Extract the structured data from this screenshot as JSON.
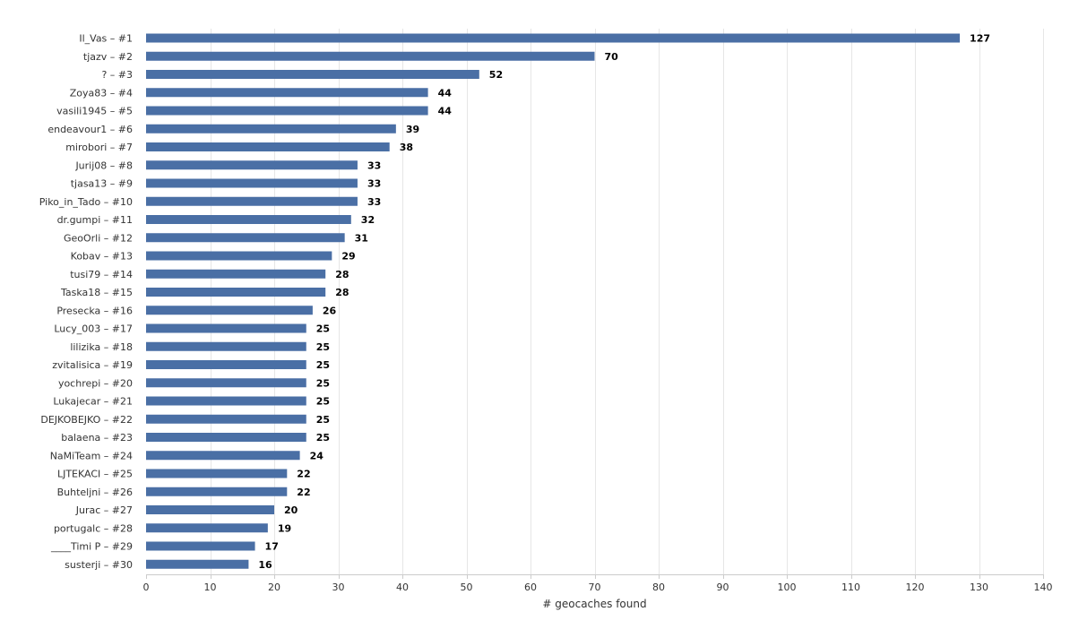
{
  "chart_data": {
    "type": "bar",
    "orientation": "horizontal",
    "categories": [
      "Il_Vas – #1",
      "tjazv – #2",
      "? – #3",
      "Zoya83 – #4",
      "vasili1945 – #5",
      "endeavour1 – #6",
      "mirobori – #7",
      "Jurij08 – #8",
      "tjasa13 – #9",
      "Piko_in_Tado – #10",
      "dr.gumpi – #11",
      "GeoOrli – #12",
      "Kobav – #13",
      "tusi79 – #14",
      "Taska18 – #15",
      "Presecka – #16",
      "Lucy_003 – #17",
      "lilizika – #18",
      "zvitalisica – #19",
      "yochrepi – #20",
      "Lukajecar – #21",
      "DEJKOBEJKO – #22",
      "balaena – #23",
      "NaMiTeam – #24",
      "LJTEKACI – #25",
      "Buhteljni – #26",
      "Jurac – #27",
      "portugalc – #28",
      "____Timi P – #29",
      "susterji – #30"
    ],
    "values": [
      127,
      70,
      52,
      44,
      44,
      39,
      38,
      33,
      33,
      33,
      32,
      31,
      29,
      28,
      28,
      26,
      25,
      25,
      25,
      25,
      25,
      25,
      25,
      24,
      22,
      22,
      20,
      19,
      17,
      16
    ],
    "xlabel": "# geocaches found",
    "ylabel": "",
    "xlim": [
      0,
      140
    ],
    "xticks": [
      0,
      10,
      20,
      30,
      40,
      50,
      60,
      70,
      80,
      90,
      100,
      110,
      120,
      130,
      140
    ],
    "grid": true,
    "data_labels": true,
    "bar_color": "#4a6fa5"
  }
}
